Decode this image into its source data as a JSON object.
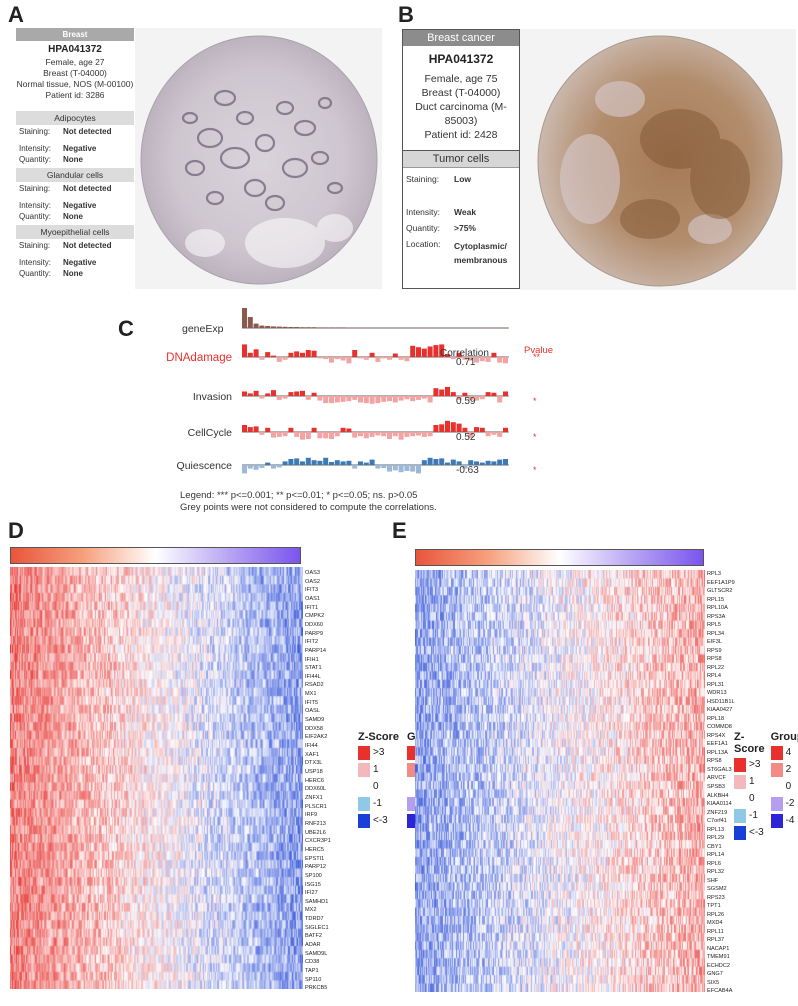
{
  "panel_labels": {
    "a": "A",
    "b": "B",
    "c": "C",
    "d": "D",
    "e": "E"
  },
  "panelA": {
    "header": "Breast",
    "antibody": "HPA041372",
    "patient_lines": [
      "Female, age 27",
      "Breast (T-04000)",
      "Normal tissue, NOS (M-00100)",
      "Patient id: 3286"
    ],
    "sections": [
      {
        "title": "Adipocytes",
        "staining": "Not detected",
        "intensity": "Negative",
        "quantity": "None"
      },
      {
        "title": "Glandular cells",
        "staining": "Not detected",
        "intensity": "Negative",
        "quantity": "None"
      },
      {
        "title": "Myoepithelial cells",
        "staining": "Not detected",
        "intensity": "Negative",
        "quantity": "None"
      }
    ],
    "keys": {
      "staining": "Staining:",
      "intensity": "Intensity:",
      "quantity": "Quantity:"
    }
  },
  "panelB": {
    "header": "Breast cancer",
    "antibody": "HPA041372",
    "patient_lines": [
      "Female, age 75",
      "Breast (T-04000)",
      "Duct carcinoma (M-85003)",
      "Patient id: 2428"
    ],
    "section_title": "Tumor cells",
    "rows": [
      {
        "k": "Staining:",
        "v": "Low"
      },
      {
        "k": "Intensity:",
        "v": "Weak"
      },
      {
        "k": "Quantity:",
        "v": ">75%"
      },
      {
        "k": "Location:",
        "v": "Cytoplasmic/ membranous"
      }
    ]
  },
  "panelC": {
    "corr_header": "Correlation",
    "p_header": "Pvalue",
    "legend_line1": "Legend: *** p<=0.001; ** p<=0.01; * p<=0.05; ns. p>0.05",
    "legend_line2": "Grey points were not considered to compute the correlations.",
    "colors": {
      "red": "#e8312d",
      "pink": "#f4a3a3",
      "blue": "#3d79b4",
      "lightblue": "#9bbad9",
      "brown": "#8a5a4e",
      "highlight": "#e8312d"
    },
    "chart_data": {
      "type": "bar",
      "tracks": [
        {
          "name": "geneExp",
          "correlation": "",
          "pvalue": "",
          "values": [
            1.0,
            0.55,
            0.22,
            0.12,
            0.1,
            0.08,
            0.07,
            0.06,
            0.05,
            0.05,
            0.04,
            0.04,
            0.04,
            0.03,
            0.03,
            0.03,
            0.03,
            0.03,
            0.02,
            0.02,
            0.02,
            0.02,
            0.02,
            0.02,
            0.02,
            0.02,
            0.02,
            0.02,
            0.02,
            0.02,
            0.02,
            0.02,
            0.02,
            0.02,
            0.02,
            0.02,
            0.02,
            0.02,
            0.02,
            0.02,
            0.02,
            0.02,
            0.02,
            0.02,
            0.02,
            0.02
          ]
        },
        {
          "name": "DNAdamage",
          "correlation": "0.71",
          "pvalue": "**",
          "values": [
            0.9,
            0.3,
            0.55,
            -0.2,
            0.35,
            0.1,
            -0.35,
            -0.2,
            0.3,
            0.4,
            0.3,
            0.5,
            0.45,
            -0.1,
            -0.15,
            -0.4,
            -0.15,
            -0.25,
            -0.45,
            0.5,
            -0.1,
            -0.2,
            0.3,
            -0.35,
            -0.1,
            -0.2,
            0.25,
            -0.2,
            -0.3,
            0.8,
            0.7,
            0.6,
            0.75,
            0.85,
            0.9,
            0.2,
            -0.15,
            0.3,
            -0.2,
            -0.25,
            -0.4,
            -0.3,
            -0.35,
            0.3,
            -0.4,
            -0.45
          ]
        },
        {
          "name": "Invasion",
          "correlation": "0.59",
          "pvalue": "*",
          "values": [
            0.35,
            0.2,
            0.4,
            -0.2,
            0.2,
            0.45,
            -0.3,
            -0.2,
            0.3,
            0.35,
            0.4,
            -0.3,
            0.25,
            -0.35,
            -0.55,
            -0.55,
            -0.5,
            -0.45,
            -0.4,
            -0.3,
            -0.5,
            -0.55,
            -0.6,
            -0.55,
            -0.45,
            -0.4,
            -0.5,
            -0.35,
            -0.25,
            -0.4,
            -0.3,
            -0.2,
            -0.5,
            0.6,
            0.5,
            0.7,
            0.3,
            -0.3,
            0.25,
            -0.3,
            -0.35,
            -0.25,
            0.3,
            0.25,
            -0.5,
            0.35
          ]
        },
        {
          "name": "CellCycle",
          "correlation": "0.52",
          "pvalue": "*",
          "values": [
            0.5,
            0.35,
            0.4,
            -0.2,
            0.3,
            -0.4,
            -0.35,
            -0.3,
            0.3,
            -0.35,
            -0.55,
            -0.5,
            0.3,
            -0.45,
            -0.45,
            -0.5,
            -0.3,
            0.3,
            0.25,
            -0.4,
            -0.3,
            -0.45,
            -0.35,
            -0.25,
            -0.3,
            -0.5,
            -0.3,
            -0.55,
            -0.35,
            -0.3,
            -0.25,
            -0.35,
            -0.3,
            0.5,
            0.55,
            0.8,
            0.7,
            0.6,
            0.3,
            -0.4,
            0.35,
            0.3,
            -0.3,
            -0.2,
            -0.35,
            0.3
          ]
        },
        {
          "name": "Quiescence",
          "correlation": "-0.63",
          "pvalue": "*",
          "values": [
            -0.7,
            -0.3,
            -0.4,
            -0.25,
            0.2,
            -0.3,
            -0.2,
            0.3,
            0.5,
            0.55,
            0.3,
            0.6,
            0.4,
            0.35,
            0.6,
            0.25,
            0.4,
            0.3,
            0.35,
            -0.3,
            0.3,
            0.2,
            0.45,
            -0.3,
            -0.25,
            -0.55,
            -0.45,
            -0.6,
            -0.5,
            -0.55,
            -0.7,
            0.4,
            0.6,
            0.5,
            0.55,
            0.2,
            0.45,
            0.3,
            -0.3,
            0.4,
            0.3,
            0.2,
            0.35,
            0.3,
            0.45,
            0.5
          ]
        }
      ]
    }
  },
  "panelD": {
    "genes": [
      "OAS3",
      "OAS2",
      "IFIT3",
      "OAS1",
      "IFIT1",
      "CMPK2",
      "DDX60",
      "PARP9",
      "IFIT2",
      "PARP14",
      "IFIH1",
      "STAT1",
      "IFI44L",
      "RSAD2",
      "MX1",
      "IFIT5",
      "OASL",
      "SAMD9",
      "DDX58",
      "EIF2AK2",
      "IFI44",
      "XAF1",
      "DTX3L",
      "USP18",
      "HERC6",
      "DDX60L",
      "ZNFX1",
      "PLSCR1",
      "IRF9",
      "RNF213",
      "UBE2L6",
      "CXCR3P1",
      "HERC5",
      "EPSTI1",
      "PARP12",
      "SP100",
      "ISG15",
      "IFI27",
      "SAMHD1",
      "MX2",
      "TDRD7",
      "SIGLEC1",
      "BATF2",
      "ADAR",
      "SAMD9L",
      "CD38",
      "TAP1",
      "SP110",
      "PRKCB5"
    ]
  },
  "panelE": {
    "genes": [
      "RPL3",
      "EEF1A1P9",
      "GLTSCR2",
      "RPL15",
      "RPL10A",
      "RPS3A",
      "RPL5",
      "RPL34",
      "EIF3L",
      "RPS9",
      "RPS8",
      "RPL22",
      "RPL4",
      "RPL31",
      "WDR13",
      "HSD11B1L",
      "KIAA0427",
      "RPL18",
      "COMMD8",
      "RPS4X",
      "EEF1A1",
      "RPL13A",
      "RPS8",
      "ST6GAL3",
      "ARVCF",
      "SPSB3",
      "ALKBH4",
      "KIAA0114",
      "ZNF219",
      "C7orf41",
      "RPL13",
      "RPL29",
      "CBY1",
      "RPL14",
      "RPL6",
      "RPL32",
      "SHF",
      "SGSM2",
      "RPS23",
      "TPT1",
      "RPL26",
      "MXD4",
      "RPL11",
      "RPL37",
      "NACAP1",
      "TMEM91",
      "ECHDC2",
      "GNG7",
      "SIX5",
      "EFCAB4A"
    ]
  },
  "legend": {
    "zscore_title": "Z-Score",
    "group_title": "Group",
    "zscore_labels": [
      ">3",
      "1",
      "0",
      "-1",
      "<-3"
    ],
    "group_labels": [
      "4",
      "2",
      "0",
      "-2",
      "-4"
    ],
    "zscore_colors": [
      "#e8312d",
      "#f2b8bc",
      "#ffffff",
      "#8fc9e6",
      "#1a3fd6"
    ],
    "group_colors": [
      "#e8312d",
      "#f28a86",
      "#ffffff",
      "#b59df0",
      "#2b25d6"
    ]
  }
}
